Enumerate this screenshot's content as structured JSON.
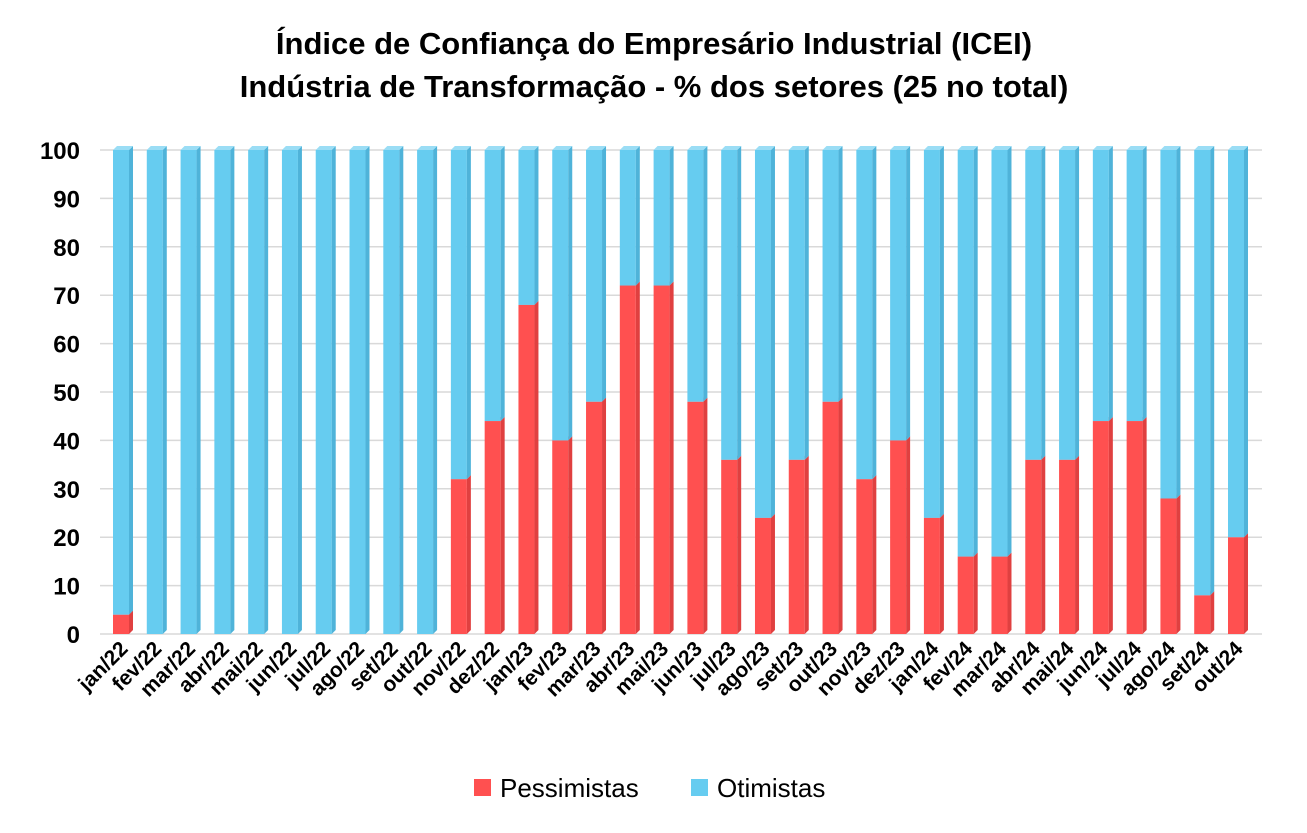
{
  "chart_data": {
    "type": "bar",
    "stacked": true,
    "title_line1": "Índice de Confiança do Empresário Industrial (ICEI)",
    "title_line2": "Indústria de Transformação - % dos setores (25 no total)",
    "xlabel": "",
    "ylabel": "",
    "ylim": [
      0,
      100
    ],
    "yticks": [
      0,
      10,
      20,
      30,
      40,
      50,
      60,
      70,
      80,
      90,
      100
    ],
    "grid": true,
    "legend_position": "bottom",
    "categories": [
      "jan/22",
      "fev/22",
      "mar/22",
      "abr/22",
      "mai/22",
      "jun/22",
      "jul/22",
      "ago/22",
      "set/22",
      "out/22",
      "nov/22",
      "dez/22",
      "jan/23",
      "fev/23",
      "mar/23",
      "abr/23",
      "mai/23",
      "jun/23",
      "jul/23",
      "ago/23",
      "set/23",
      "out/23",
      "nov/23",
      "dez/23",
      "jan/24",
      "fev/24",
      "mar/24",
      "abr/24",
      "mai/24",
      "jun/24",
      "jul/24",
      "ago/24",
      "set/24",
      "out/24"
    ],
    "series": [
      {
        "name": "Pessimistas",
        "color": "#FF5050",
        "values": [
          4,
          0,
          0,
          0,
          0,
          0,
          0,
          0,
          0,
          0,
          32,
          44,
          68,
          40,
          48,
          72,
          72,
          48,
          36,
          24,
          36,
          48,
          32,
          40,
          24,
          16,
          16,
          36,
          36,
          44,
          44,
          28,
          8,
          20
        ]
      },
      {
        "name": "Otimistas",
        "color": "#66CCF0",
        "values": [
          96,
          100,
          100,
          100,
          100,
          100,
          100,
          100,
          100,
          100,
          68,
          56,
          32,
          60,
          52,
          28,
          28,
          52,
          64,
          76,
          64,
          52,
          68,
          60,
          76,
          84,
          84,
          64,
          64,
          56,
          56,
          72,
          92,
          80
        ]
      }
    ]
  }
}
